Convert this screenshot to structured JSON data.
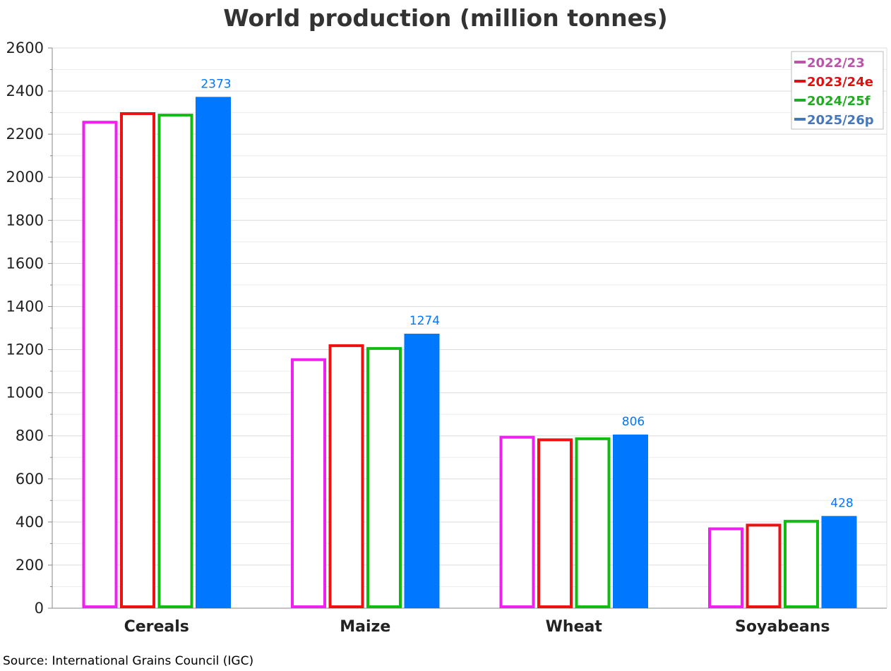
{
  "chart_data": {
    "type": "bar",
    "title": "World production (million tonnes)",
    "xlabel": "",
    "ylabel": "",
    "categories": [
      "Cereals",
      "Maize",
      "Wheat",
      "Soyabeans"
    ],
    "ylim": [
      0,
      2600
    ],
    "yticks": [
      0,
      200,
      400,
      600,
      800,
      1000,
      1200,
      1400,
      1600,
      1800,
      2000,
      2200,
      2400,
      2600
    ],
    "grid": true,
    "legend_position": "top-right",
    "series": [
      {
        "name": "2022/23",
        "values": [
          2262,
          1160,
          800,
          375
        ],
        "color": "#ee22ee",
        "legend_color": "#bb55aa",
        "style": "outline"
      },
      {
        "name": "2023/24e",
        "values": [
          2302,
          1225,
          788,
          392
        ],
        "color": "#ee1111",
        "legend_color": "#dd1111",
        "style": "outline"
      },
      {
        "name": "2024/25f",
        "values": [
          2295,
          1212,
          793,
          410
        ],
        "color": "#11bb11",
        "legend_color": "#22aa22",
        "style": "outline"
      },
      {
        "name": "2025/26p",
        "values": [
          2373,
          1274,
          806,
          428
        ],
        "color": "#0077ff",
        "legend_color": "#4477bb",
        "style": "filled",
        "data_labels": [
          "2373",
          "1274",
          "806",
          "428"
        ]
      }
    ]
  },
  "source": "Source: International Grains Council (IGC)"
}
